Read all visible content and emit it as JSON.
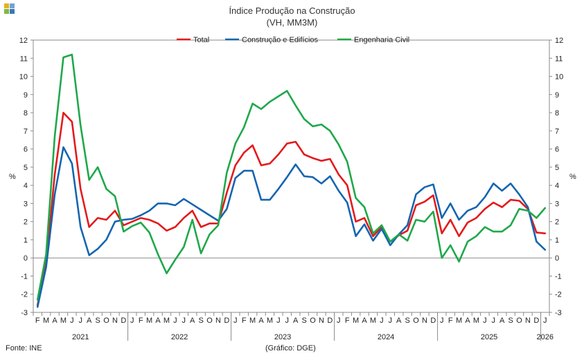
{
  "header": {
    "title": "Índice Produção na Construção",
    "subtitle": "(VH, MM3M)"
  },
  "footer": {
    "source": "Fonte: INE",
    "credit": "(Gráfico: DGE)"
  },
  "logo_colors": [
    "#e8b01c",
    "#6fa3d6",
    "#7dbb42",
    "#3a78b5"
  ],
  "chart_data": {
    "type": "line",
    "ylabel_left": "%",
    "ylabel_right": "%",
    "ylim": [
      -3,
      12
    ],
    "yticks": [
      12,
      11,
      10,
      9,
      8,
      7,
      6,
      5,
      4,
      3,
      2,
      1,
      0,
      -1,
      -2,
      -3
    ],
    "month_labels": [
      "F",
      "M",
      "A",
      "M",
      "J",
      "J",
      "A",
      "S",
      "O",
      "N",
      "D",
      "J",
      "F",
      "M",
      "A",
      "M",
      "J",
      "J",
      "A",
      "S",
      "O",
      "N",
      "D",
      "J",
      "F",
      "M",
      "A",
      "M",
      "J",
      "J",
      "A",
      "S",
      "O",
      "N",
      "D",
      "J",
      "F",
      "M",
      "A",
      "M",
      "J",
      "J",
      "A",
      "S",
      "O",
      "N",
      "D",
      "J",
      "F",
      "M",
      "A",
      "M",
      "J",
      "J",
      "A",
      "S",
      "O",
      "N",
      "D",
      "J"
    ],
    "year_labels": [
      {
        "label": "2021",
        "start": 0,
        "end": 10
      },
      {
        "label": "2022",
        "start": 11,
        "end": 22
      },
      {
        "label": "2023",
        "start": 23,
        "end": 34
      },
      {
        "label": "2024",
        "start": 35,
        "end": 46
      },
      {
        "label": "2025",
        "start": 47,
        "end": 58
      },
      {
        "label": "2026",
        "start": 59,
        "end": 59
      }
    ],
    "legend_position": "top-center",
    "series": [
      {
        "name": "Total",
        "color": "#e41a1c",
        "values": [
          -2.6,
          -0.3,
          4.6,
          8.0,
          7.5,
          3.8,
          1.7,
          2.2,
          2.1,
          2.6,
          1.8,
          2.0,
          2.2,
          2.1,
          1.9,
          1.5,
          1.7,
          2.2,
          2.6,
          1.7,
          1.9,
          1.9,
          3.6,
          5.1,
          5.8,
          6.2,
          5.1,
          5.2,
          5.7,
          6.3,
          6.4,
          5.7,
          5.5,
          5.35,
          5.45,
          4.6,
          4.0,
          2.0,
          2.2,
          1.2,
          1.7,
          0.9,
          1.25,
          1.5,
          2.9,
          3.1,
          3.45,
          1.35,
          2.1,
          1.2,
          1.95,
          2.2,
          2.7,
          3.05,
          2.8,
          3.2,
          3.15,
          2.7,
          1.4,
          1.35
        ]
      },
      {
        "name": "Construção e Edifícios",
        "color": "#1565b0",
        "values": [
          -2.7,
          -0.5,
          3.5,
          6.1,
          5.2,
          1.7,
          0.15,
          0.5,
          1.0,
          2.0,
          2.1,
          2.15,
          2.35,
          2.6,
          3.0,
          3.0,
          2.9,
          3.25,
          2.95,
          2.65,
          2.35,
          2.05,
          2.7,
          4.4,
          4.8,
          4.8,
          3.2,
          3.2,
          3.8,
          4.45,
          5.15,
          4.5,
          4.45,
          4.1,
          4.5,
          3.7,
          3.05,
          1.2,
          1.85,
          0.95,
          1.6,
          0.7,
          1.3,
          1.8,
          3.5,
          3.9,
          4.05,
          2.2,
          3.0,
          2.1,
          2.6,
          2.8,
          3.35,
          4.1,
          3.7,
          4.1,
          3.5,
          2.8,
          0.9,
          0.45
        ]
      },
      {
        "name": "Engenharia Civil",
        "color": "#1fa84a",
        "values": [
          -2.3,
          0.2,
          6.7,
          11.05,
          11.2,
          7.3,
          4.3,
          5.0,
          3.8,
          3.4,
          1.45,
          1.75,
          1.95,
          1.4,
          0.2,
          -0.85,
          -0.1,
          0.6,
          2.1,
          0.25,
          1.3,
          1.8,
          4.7,
          6.3,
          7.2,
          8.5,
          8.2,
          8.6,
          8.9,
          9.2,
          8.4,
          7.65,
          7.25,
          7.35,
          7.0,
          6.25,
          5.3,
          3.3,
          2.8,
          1.35,
          1.8,
          0.9,
          1.3,
          0.95,
          2.1,
          2.0,
          2.55,
          0.0,
          0.7,
          -0.2,
          0.9,
          1.2,
          1.7,
          1.45,
          1.45,
          1.8,
          2.7,
          2.6,
          2.2,
          2.75
        ]
      }
    ]
  }
}
